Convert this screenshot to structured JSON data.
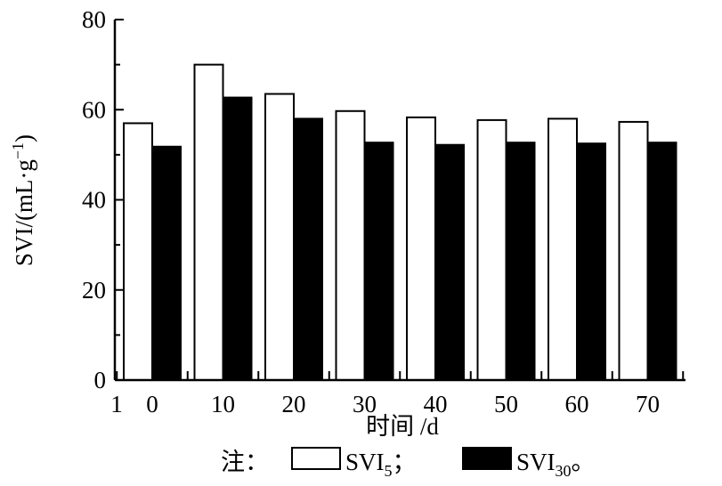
{
  "chart_data": {
    "type": "bar",
    "categories": [
      "0",
      "10",
      "20",
      "30",
      "40",
      "50",
      "60",
      "70"
    ],
    "extra_x_tick": "1",
    "series": [
      {
        "name": "SVI5",
        "values": [
          57,
          70,
          63.5,
          59.7,
          58.3,
          57.7,
          58,
          57.3
        ],
        "color": "#ffffff"
      },
      {
        "name": "SVI30",
        "values": [
          51.8,
          62.7,
          58,
          52.7,
          52.2,
          52.7,
          52.5,
          52.7
        ],
        "color": "#000000"
      }
    ],
    "ylim": [
      0,
      80
    ],
    "yticks": [
      "0",
      "20",
      "40",
      "60",
      "80"
    ],
    "xlabel": "时间 /d",
    "ylabel": "SVI/(mL·g",
    "ylabel_sup": "−1",
    "ylabel_close": ")",
    "grid": false,
    "legend": {
      "prefix": "注：",
      "items": [
        {
          "main": "SVI",
          "sub": "5",
          "suffix": "；"
        },
        {
          "main": "SVI",
          "sub": "30",
          "suffix": "。"
        }
      ]
    }
  }
}
